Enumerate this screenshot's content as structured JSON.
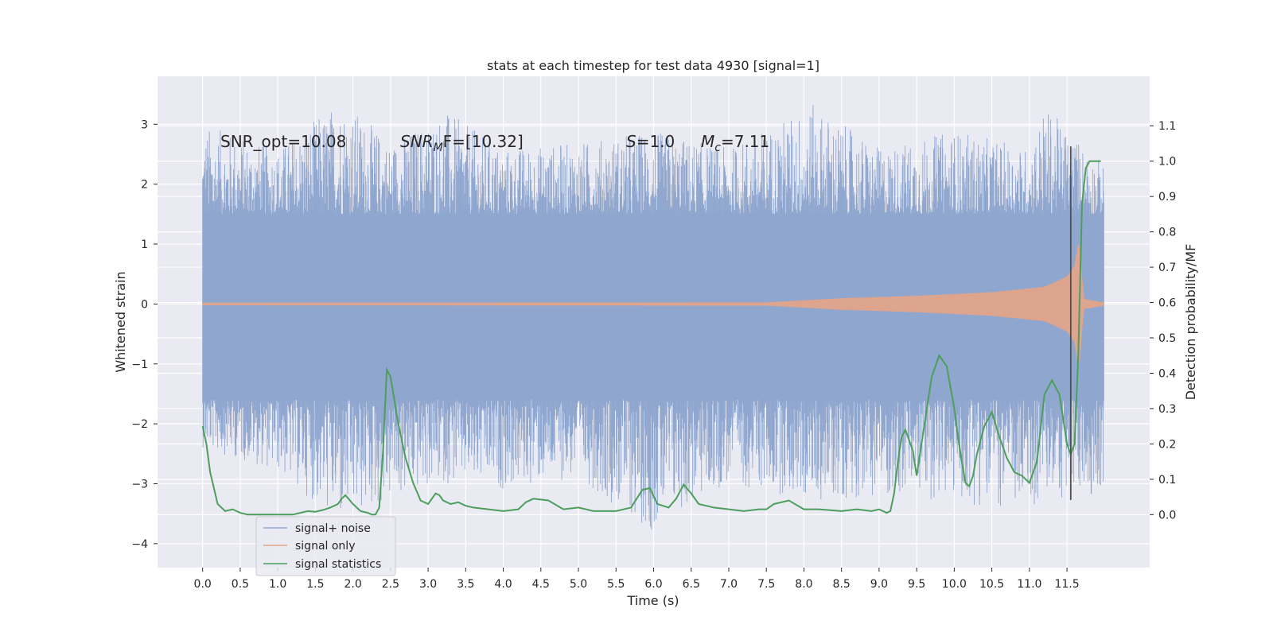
{
  "chart_data": {
    "type": "line",
    "title": "stats at each timestep for test data 4930 [signal=1]",
    "xlabel": "Time (s)",
    "ylabel": "Whitened strain",
    "y2label": "Detection probability/MF",
    "xlim": [
      -0.6,
      12.6
    ],
    "ylim": [
      -4.4,
      3.8
    ],
    "y2lim": [
      -0.15,
      1.24
    ],
    "x_ticks": [
      "0.0",
      "0.5",
      "1.0",
      "1.5",
      "2.0",
      "2.5",
      "3.0",
      "3.5",
      "4.0",
      "4.5",
      "5.0",
      "5.5",
      "6.0",
      "6.5",
      "7.0",
      "7.5",
      "8.0",
      "8.5",
      "9.0",
      "9.5",
      "10.0",
      "10.5",
      "11.0",
      "11.5"
    ],
    "y_ticks": [
      "3",
      "2",
      "1",
      "0",
      "−1",
      "−2",
      "−3",
      "−4"
    ],
    "y2_ticks": [
      "1.1",
      "1.0",
      "0.9",
      "0.8",
      "0.7",
      "0.6",
      "0.5",
      "0.4",
      "0.3",
      "0.2",
      "0.1",
      "0.0"
    ],
    "grid": true,
    "legend_position": "lower-left",
    "annotations": {
      "snr_opt": "SNR_opt=10.08",
      "snr_mf_label": "SNR",
      "snr_mf_sub": "M",
      "snr_mf_rest": "F=[10.32]",
      "s_label": "S",
      "s_value": "=1.0",
      "mc_label": "M",
      "mc_sub": "c",
      "mc_value": "=7.11"
    },
    "series": [
      {
        "name": "signal+ noise",
        "color": "#8fa6cf",
        "axis": "left",
        "envelope": {
          "x": [
            0.0,
            1.0,
            1.85,
            2.5,
            3.2,
            4.0,
            5.0,
            5.95,
            7.0,
            8.1,
            9.0,
            10.0,
            11.0,
            11.2,
            11.55,
            11.99
          ],
          "upper": [
            3.0,
            2.6,
            3.45,
            2.7,
            3.25,
            2.6,
            2.7,
            2.9,
            2.6,
            3.35,
            2.6,
            2.9,
            2.6,
            3.3,
            2.9,
            2.3
          ],
          "lower": [
            -2.4,
            -2.8,
            -3.7,
            -3.3,
            -3.0,
            -3.1,
            -2.9,
            -3.8,
            -3.0,
            -3.3,
            -3.2,
            -3.3,
            -3.5,
            -3.2,
            -3.3,
            -3.1
          ],
          "body": [
            1.5,
            -1.6
          ]
        }
      },
      {
        "name": "signal only",
        "color": "#e1a48a",
        "axis": "left",
        "x": [
          0.0,
          7.5,
          8.5,
          9.5,
          10.5,
          11.2,
          11.5,
          11.6,
          11.66,
          11.72,
          11.99
        ],
        "amp": [
          0.015,
          0.02,
          0.09,
          0.13,
          0.19,
          0.28,
          0.45,
          0.62,
          1.05,
          0.08,
          0.02
        ]
      },
      {
        "name": "signal statistics",
        "color": "#4d9e5d",
        "axis": "right",
        "x": [
          0.0,
          0.05,
          0.1,
          0.2,
          0.3,
          0.4,
          0.5,
          0.6,
          0.7,
          0.8,
          1.0,
          1.2,
          1.3,
          1.4,
          1.5,
          1.6,
          1.7,
          1.8,
          1.85,
          1.9,
          2.0,
          2.1,
          2.2,
          2.25,
          2.3,
          2.35,
          2.4,
          2.45,
          2.5,
          2.6,
          2.7,
          2.8,
          2.9,
          3.0,
          3.05,
          3.1,
          3.15,
          3.2,
          3.3,
          3.4,
          3.5,
          3.6,
          3.8,
          4.0,
          4.2,
          4.3,
          4.4,
          4.6,
          4.8,
          5.0,
          5.2,
          5.5,
          5.7,
          5.85,
          5.95,
          6.05,
          6.2,
          6.3,
          6.4,
          6.5,
          6.6,
          6.8,
          7.0,
          7.2,
          7.4,
          7.5,
          7.6,
          7.8,
          8.0,
          8.2,
          8.5,
          8.7,
          8.9,
          9.0,
          9.1,
          9.15,
          9.2,
          9.25,
          9.3,
          9.35,
          9.45,
          9.5,
          9.6,
          9.7,
          9.8,
          9.9,
          10.0,
          10.05,
          10.1,
          10.15,
          10.2,
          10.25,
          10.3,
          10.4,
          10.5,
          10.6,
          10.7,
          10.8,
          10.9,
          11.0,
          11.1,
          11.2,
          11.3,
          11.4,
          11.5,
          11.55,
          11.6,
          11.65,
          11.7,
          11.75,
          11.8,
          11.9,
          11.95
        ],
        "y": [
          0.25,
          0.2,
          0.12,
          0.03,
          0.01,
          0.015,
          0.005,
          0.0,
          0.0,
          0.0,
          0.0,
          0.0,
          0.005,
          0.01,
          0.008,
          0.013,
          0.02,
          0.03,
          0.045,
          0.055,
          0.03,
          0.01,
          0.005,
          0.0,
          0.0,
          0.02,
          0.18,
          0.41,
          0.39,
          0.26,
          0.16,
          0.09,
          0.04,
          0.03,
          0.045,
          0.06,
          0.055,
          0.04,
          0.03,
          0.035,
          0.025,
          0.02,
          0.015,
          0.01,
          0.015,
          0.035,
          0.045,
          0.04,
          0.015,
          0.02,
          0.01,
          0.01,
          0.02,
          0.07,
          0.075,
          0.03,
          0.02,
          0.045,
          0.085,
          0.06,
          0.03,
          0.02,
          0.015,
          0.01,
          0.015,
          0.015,
          0.03,
          0.04,
          0.015,
          0.015,
          0.01,
          0.015,
          0.01,
          0.015,
          0.005,
          0.01,
          0.06,
          0.15,
          0.22,
          0.24,
          0.18,
          0.11,
          0.25,
          0.39,
          0.45,
          0.42,
          0.3,
          0.22,
          0.15,
          0.09,
          0.08,
          0.11,
          0.17,
          0.25,
          0.29,
          0.22,
          0.16,
          0.12,
          0.11,
          0.09,
          0.15,
          0.34,
          0.38,
          0.34,
          0.2,
          0.17,
          0.2,
          0.45,
          0.88,
          0.98,
          1.0,
          1.0,
          1.0
        ]
      }
    ],
    "vline": {
      "x": 11.55,
      "ymin": -3.27,
      "ymax": 2.63,
      "color": "#4f4f4f"
    }
  }
}
